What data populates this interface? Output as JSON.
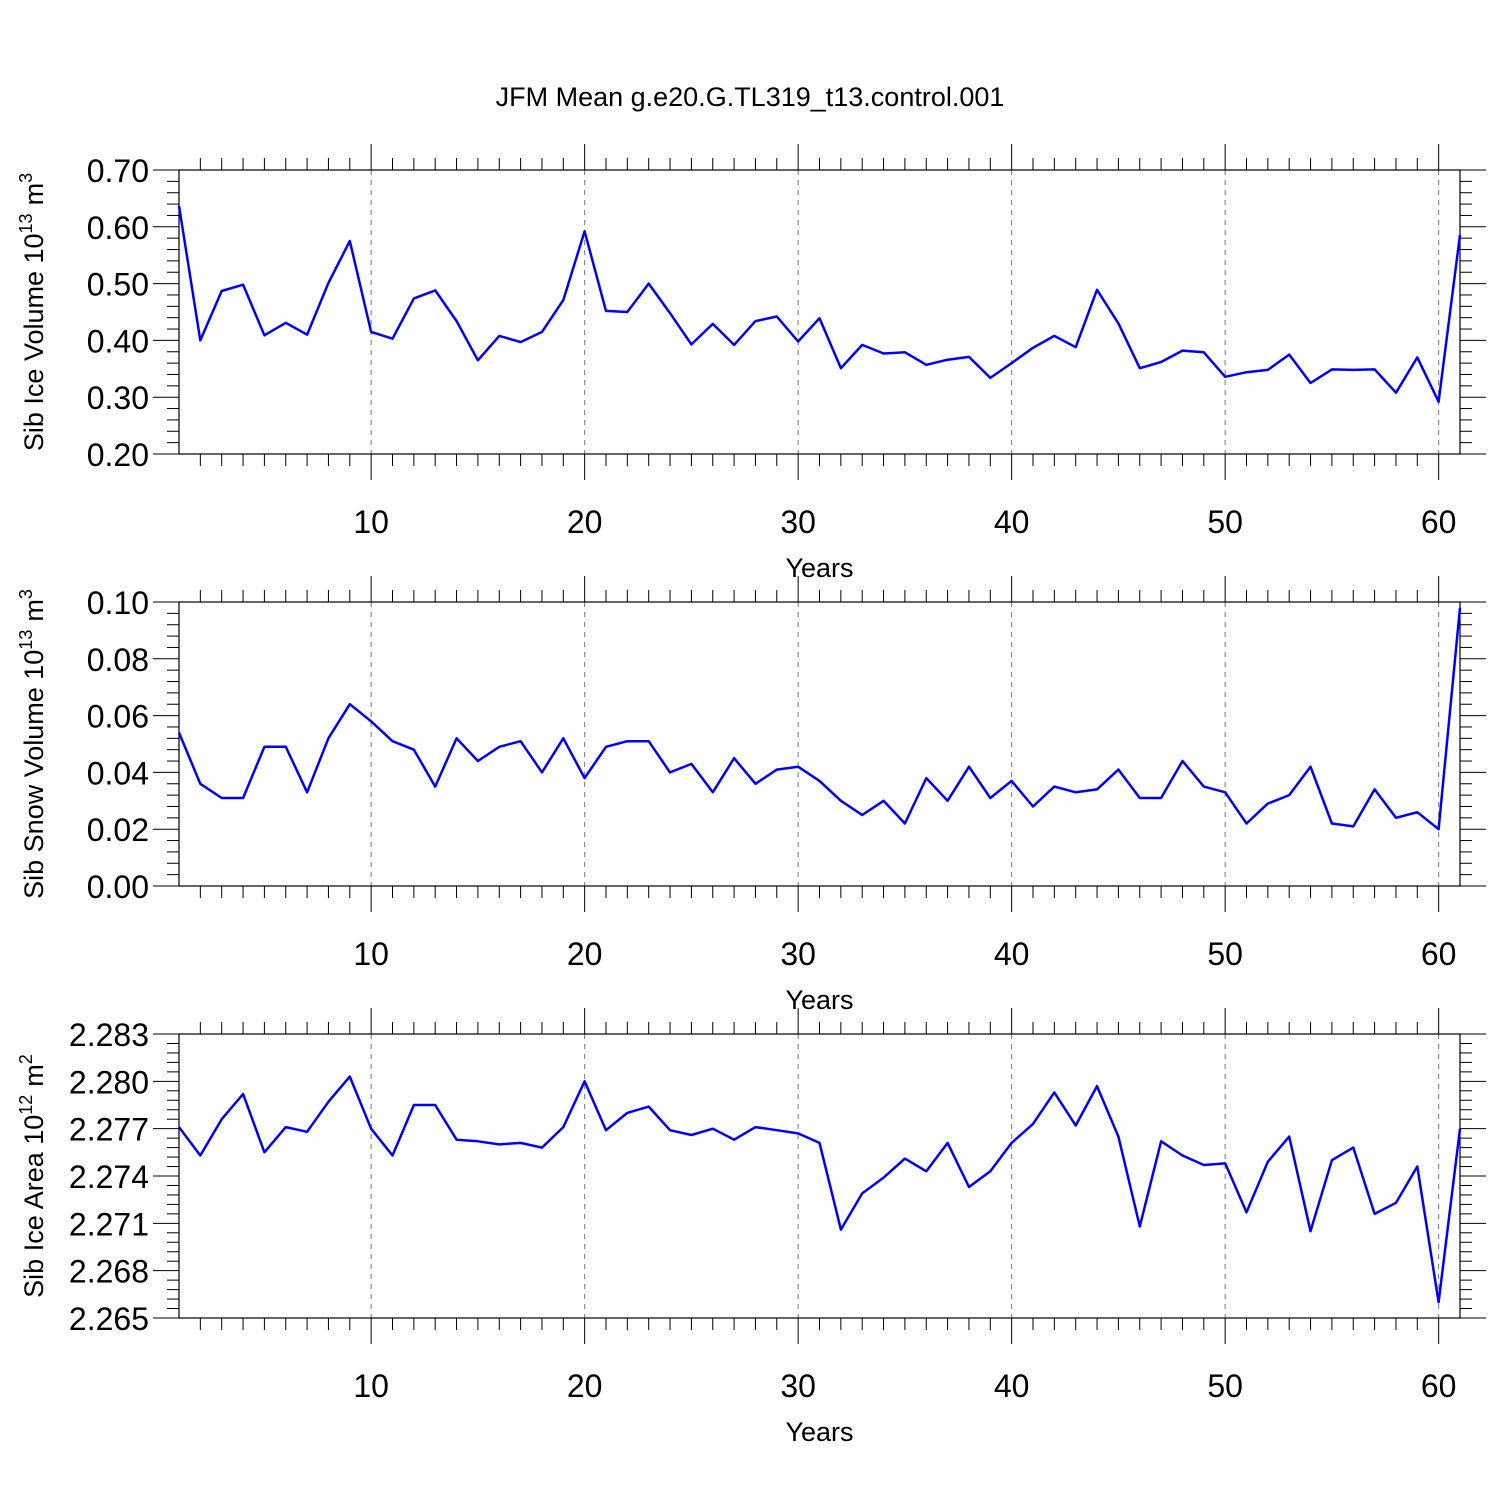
{
  "figure_title": "JFM Mean g.e20.G.TL319_t13.control.001",
  "series_color": "#0000ff",
  "chart_data": [
    {
      "type": "line",
      "ylabel": "Sib Ice Volume 10",
      "ylabel_exp": "13",
      "ylabel_unit": "m",
      "ylabel_unit_exp": "3",
      "xlabel": "Years",
      "xlim": [
        1,
        61
      ],
      "ylim": [
        0.2,
        0.7
      ],
      "yticks": [
        0.2,
        0.3,
        0.4,
        0.5,
        0.6,
        0.7
      ],
      "ytick_labels": [
        "0.20",
        "0.30",
        "0.40",
        "0.50",
        "0.60",
        "0.70"
      ],
      "xticks": [
        10,
        20,
        30,
        40,
        50,
        60
      ],
      "xtick_labels": [
        "10",
        "20",
        "30",
        "40",
        "50",
        "60"
      ],
      "grid": "vertical dashed at major x ticks",
      "x": [
        1,
        2,
        3,
        4,
        5,
        6,
        7,
        8,
        9,
        10,
        11,
        12,
        13,
        14,
        15,
        16,
        17,
        18,
        19,
        20,
        21,
        22,
        23,
        24,
        25,
        26,
        27,
        28,
        29,
        30,
        31,
        32,
        33,
        34,
        35,
        36,
        37,
        38,
        39,
        40,
        41,
        42,
        43,
        44,
        45,
        46,
        47,
        48,
        49,
        50,
        51,
        52,
        53,
        54,
        55,
        56,
        57,
        58,
        59,
        60,
        61
      ],
      "values": [
        0.637,
        0.4,
        0.487,
        0.498,
        0.409,
        0.431,
        0.41,
        0.501,
        0.575,
        0.415,
        0.403,
        0.474,
        0.488,
        0.434,
        0.365,
        0.408,
        0.397,
        0.415,
        0.471,
        0.592,
        0.452,
        0.45,
        0.5,
        0.448,
        0.393,
        0.429,
        0.392,
        0.434,
        0.442,
        0.398,
        0.439,
        0.351,
        0.392,
        0.377,
        0.379,
        0.357,
        0.366,
        0.371,
        0.334,
        0.36,
        0.387,
        0.408,
        0.388,
        0.489,
        0.43,
        0.351,
        0.362,
        0.382,
        0.379,
        0.336,
        0.344,
        0.348,
        0.375,
        0.325,
        0.349,
        0.348,
        0.349,
        0.308,
        0.37,
        0.292,
        0.586
      ]
    },
    {
      "type": "line",
      "ylabel": "Sib Snow Volume 10",
      "ylabel_exp": "13",
      "ylabel_unit": "m",
      "ylabel_unit_exp": "3",
      "xlabel": "Years",
      "xlim": [
        1,
        61
      ],
      "ylim": [
        0.0,
        0.1
      ],
      "yticks": [
        0.0,
        0.02,
        0.04,
        0.06,
        0.08,
        0.1
      ],
      "ytick_labels": [
        "0.00",
        "0.02",
        "0.04",
        "0.06",
        "0.08",
        "0.10"
      ],
      "xticks": [
        10,
        20,
        30,
        40,
        50,
        60
      ],
      "xtick_labels": [
        "10",
        "20",
        "30",
        "40",
        "50",
        "60"
      ],
      "grid": "vertical dashed at major x ticks",
      "x": [
        1,
        2,
        3,
        4,
        5,
        6,
        7,
        8,
        9,
        10,
        11,
        12,
        13,
        14,
        15,
        16,
        17,
        18,
        19,
        20,
        21,
        22,
        23,
        24,
        25,
        26,
        27,
        28,
        29,
        30,
        31,
        32,
        33,
        34,
        35,
        36,
        37,
        38,
        39,
        40,
        41,
        42,
        43,
        44,
        45,
        46,
        47,
        48,
        49,
        50,
        51,
        52,
        53,
        54,
        55,
        56,
        57,
        58,
        59,
        60,
        61
      ],
      "values": [
        0.054,
        0.036,
        0.031,
        0.031,
        0.049,
        0.049,
        0.033,
        0.052,
        0.064,
        0.058,
        0.051,
        0.048,
        0.035,
        0.052,
        0.044,
        0.049,
        0.051,
        0.04,
        0.052,
        0.038,
        0.049,
        0.051,
        0.051,
        0.04,
        0.043,
        0.033,
        0.045,
        0.036,
        0.041,
        0.042,
        0.037,
        0.03,
        0.025,
        0.03,
        0.022,
        0.038,
        0.03,
        0.042,
        0.031,
        0.037,
        0.028,
        0.035,
        0.033,
        0.034,
        0.041,
        0.031,
        0.031,
        0.044,
        0.035,
        0.033,
        0.022,
        0.029,
        0.032,
        0.042,
        0.022,
        0.021,
        0.034,
        0.024,
        0.026,
        0.02,
        0.098
      ]
    },
    {
      "type": "line",
      "ylabel": "Sib Ice Area 10",
      "ylabel_exp": "12",
      "ylabel_unit": "m",
      "ylabel_unit_exp": "2",
      "xlabel": "Years",
      "xlim": [
        1,
        61
      ],
      "ylim": [
        2.265,
        2.283
      ],
      "yticks": [
        2.265,
        2.268,
        2.271,
        2.274,
        2.277,
        2.28,
        2.283
      ],
      "ytick_labels": [
        "2.265",
        "2.268",
        "2.271",
        "2.274",
        "2.277",
        "2.280",
        "2.283"
      ],
      "xticks": [
        10,
        20,
        30,
        40,
        50,
        60
      ],
      "xtick_labels": [
        "10",
        "20",
        "30",
        "40",
        "50",
        "60"
      ],
      "grid": "vertical dashed at major x ticks",
      "x": [
        1,
        2,
        3,
        4,
        5,
        6,
        7,
        8,
        9,
        10,
        11,
        12,
        13,
        14,
        15,
        16,
        17,
        18,
        19,
        20,
        21,
        22,
        23,
        24,
        25,
        26,
        27,
        28,
        29,
        30,
        31,
        32,
        33,
        34,
        35,
        36,
        37,
        38,
        39,
        40,
        41,
        42,
        43,
        44,
        45,
        46,
        47,
        48,
        49,
        50,
        51,
        52,
        53,
        54,
        55,
        56,
        57,
        58,
        59,
        60,
        61
      ],
      "values": [
        2.2771,
        2.2753,
        2.2776,
        2.2792,
        2.2755,
        2.2771,
        2.2768,
        2.2787,
        2.2803,
        2.277,
        2.2753,
        2.2785,
        2.2785,
        2.2763,
        2.2762,
        2.276,
        2.2761,
        2.2758,
        2.2771,
        2.28,
        2.2769,
        2.278,
        2.2784,
        2.2769,
        2.2766,
        2.277,
        2.2763,
        2.2771,
        2.2769,
        2.2767,
        2.2761,
        2.2706,
        2.2729,
        2.2739,
        2.2751,
        2.2743,
        2.2761,
        2.2733,
        2.2743,
        2.2761,
        2.2773,
        2.2793,
        2.2772,
        2.2797,
        2.2765,
        2.2708,
        2.2762,
        2.2753,
        2.2747,
        2.2748,
        2.2717,
        2.2749,
        2.2765,
        2.2705,
        2.275,
        2.2758,
        2.2716,
        2.2723,
        2.2746,
        2.266,
        2.277
      ]
    }
  ]
}
